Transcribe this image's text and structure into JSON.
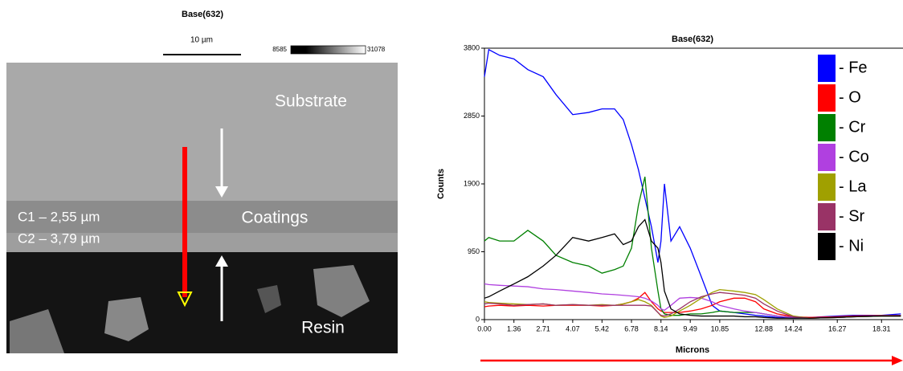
{
  "image": {
    "title": "Base(632)",
    "scale_label": "10 µm",
    "colorbar_min": "8585",
    "colorbar_max": "31078",
    "labels": [
      "Substrate",
      "Coatings",
      "Resin",
      "C1 – 2,55 µm",
      "C2 – 3,79 µm"
    ]
  },
  "chart_data": {
    "type": "line",
    "title": "Base(632)",
    "x_label": "Microns",
    "y_label": "Counts",
    "x": [
      0,
      0.2,
      0.7,
      1.36,
      2,
      2.71,
      3.3,
      4.07,
      4.8,
      5.42,
      6,
      6.4,
      6.78,
      7.1,
      7.4,
      7.7,
      8,
      8.14,
      8.3,
      8.6,
      9,
      9.49,
      10,
      10.5,
      10.85,
      11.5,
      12,
      12.5,
      12.88,
      13.5,
      14.24,
      15,
      16.27,
      17,
      18.31,
      19.2
    ],
    "series": [
      {
        "name": "- Fe",
        "color": "#0000ff",
        "values": [
          3400,
          3780,
          3700,
          3650,
          3500,
          3400,
          3150,
          2870,
          2900,
          2950,
          2950,
          2800,
          2450,
          2100,
          1700,
          1300,
          800,
          1100,
          1900,
          1100,
          1300,
          1000,
          600,
          200,
          120,
          100,
          80,
          60,
          50,
          30,
          20,
          30,
          50,
          60,
          60,
          80
        ]
      },
      {
        "name": "- O",
        "color": "#ff0000",
        "values": [
          180,
          190,
          200,
          190,
          200,
          190,
          200,
          200,
          200,
          190,
          200,
          220,
          250,
          300,
          380,
          250,
          150,
          120,
          100,
          100,
          100,
          120,
          150,
          200,
          250,
          300,
          300,
          250,
          150,
          80,
          40,
          30,
          40,
          50,
          60,
          60
        ]
      },
      {
        "name": "- Cr",
        "color": "#008000",
        "values": [
          1100,
          1150,
          1100,
          1100,
          1250,
          1100,
          900,
          800,
          750,
          650,
          700,
          750,
          1000,
          1600,
          2000,
          1000,
          400,
          150,
          80,
          60,
          60,
          80,
          80,
          100,
          120,
          100,
          100,
          100,
          80,
          50,
          30,
          20,
          30,
          40,
          50,
          50
        ]
      },
      {
        "name": "- Co",
        "color": "#b040e0",
        "values": [
          500,
          490,
          480,
          470,
          460,
          430,
          420,
          400,
          380,
          360,
          350,
          340,
          330,
          320,
          300,
          260,
          200,
          150,
          130,
          200,
          300,
          310,
          300,
          250,
          200,
          150,
          120,
          100,
          80,
          50,
          30,
          20,
          30,
          40,
          50,
          50
        ]
      },
      {
        "name": "- La",
        "color": "#a0a000",
        "values": [
          250,
          240,
          230,
          220,
          210,
          220,
          200,
          210,
          200,
          210,
          200,
          220,
          250,
          280,
          250,
          200,
          100,
          50,
          30,
          50,
          120,
          200,
          300,
          380,
          420,
          400,
          380,
          350,
          280,
          150,
          50,
          20,
          30,
          40,
          50,
          50
        ]
      },
      {
        "name": "- Sr",
        "color": "#993366",
        "values": [
          220,
          230,
          220,
          200,
          210,
          220,
          200,
          210,
          200,
          200,
          200,
          200,
          200,
          200,
          200,
          190,
          100,
          60,
          50,
          80,
          150,
          250,
          320,
          360,
          380,
          360,
          340,
          300,
          220,
          120,
          40,
          20,
          30,
          40,
          60,
          60
        ]
      },
      {
        "name": "- Ni",
        "color": "#000000",
        "values": [
          300,
          320,
          400,
          500,
          600,
          750,
          900,
          1150,
          1100,
          1150,
          1200,
          1050,
          1100,
          1300,
          1400,
          1100,
          1000,
          800,
          400,
          150,
          80,
          60,
          50,
          50,
          50,
          50,
          40,
          40,
          30,
          20,
          20,
          20,
          30,
          40,
          50,
          50
        ]
      }
    ],
    "xlim": [
      0,
      19.3
    ],
    "ylim": [
      0,
      3800
    ],
    "xticks": [
      {
        "value": 0,
        "label": "0.00"
      },
      {
        "value": 1.36,
        "label": "1.36"
      },
      {
        "value": 2.71,
        "label": "2.71"
      },
      {
        "value": 4.07,
        "label": "4.07"
      },
      {
        "value": 5.42,
        "label": "5.42"
      },
      {
        "value": 6.78,
        "label": "6.78"
      },
      {
        "value": 8.14,
        "label": "8.14"
      },
      {
        "value": 9.49,
        "label": "9.49"
      },
      {
        "value": 10.85,
        "label": "10.85"
      },
      {
        "value": 12.88,
        "label": "12.88"
      },
      {
        "value": 14.24,
        "label": "14.24"
      },
      {
        "value": 16.27,
        "label": "16.27"
      },
      {
        "value": 18.31,
        "label": "18.31"
      }
    ],
    "yticks": [
      0,
      950,
      1900,
      2850,
      3800
    ],
    "legend": "upper right",
    "grid": false
  }
}
